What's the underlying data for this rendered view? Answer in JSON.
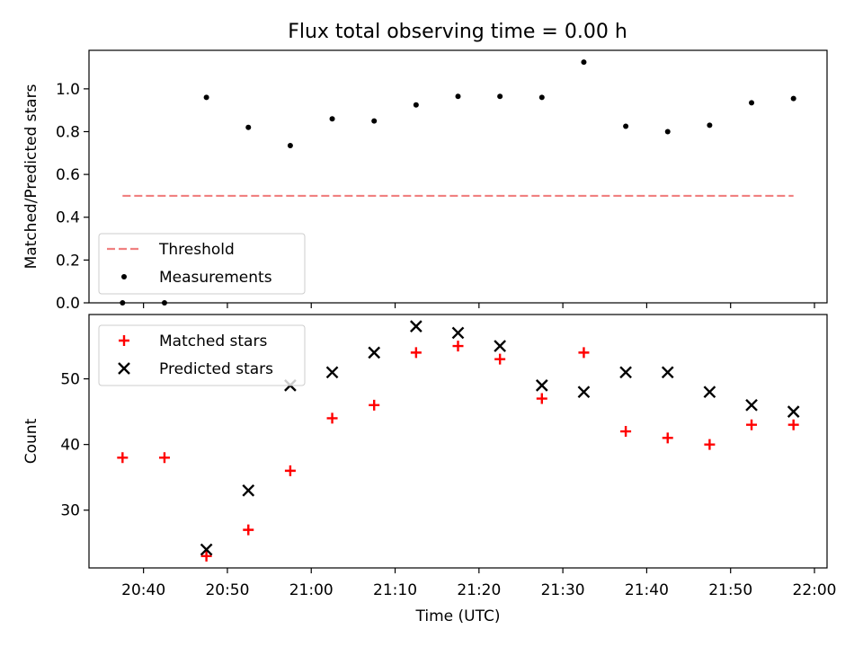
{
  "title": "Flux total observing time = 0.00 h",
  "chart_data": [
    {
      "type": "scatter",
      "ylabel": "Matched/Predicted stars",
      "xlim": [
        "20:33:30",
        "22:01:30"
      ],
      "ylim": [
        0,
        1.18
      ],
      "yticks": [
        "0.0",
        "0.2",
        "0.4",
        "0.6",
        "0.8",
        "1.0"
      ],
      "legend_position": "bottom-left",
      "series": [
        {
          "name": "Threshold",
          "style": "dashed-line",
          "color": "#f08080",
          "x": [
            "20:37:30",
            "21:57:30"
          ],
          "values": [
            0.5,
            0.5
          ]
        },
        {
          "name": "Measurements",
          "style": "dot",
          "color": "#000000",
          "x": [
            "20:37:30",
            "20:42:30",
            "20:47:30",
            "20:52:30",
            "20:57:30",
            "21:02:30",
            "21:07:30",
            "21:12:30",
            "21:17:30",
            "21:22:30",
            "21:27:30",
            "21:32:30",
            "21:37:30",
            "21:42:30",
            "21:47:30",
            "21:52:30",
            "21:57:30"
          ],
          "values": [
            0.0,
            0.0,
            0.96,
            0.82,
            0.735,
            0.86,
            0.85,
            0.925,
            0.965,
            0.965,
            0.96,
            1.125,
            0.825,
            0.8,
            0.83,
            0.935,
            0.955
          ]
        }
      ]
    },
    {
      "type": "scatter",
      "xlabel": "Time (UTC)",
      "ylabel": "Count",
      "xlim": [
        "20:33:30",
        "22:01:30"
      ],
      "ylim": [
        21.2,
        59.8
      ],
      "xticks": [
        "20:40",
        "20:50",
        "21:00",
        "21:10",
        "21:20",
        "21:30",
        "21:40",
        "21:50",
        "22:00"
      ],
      "yticks": [
        "30",
        "40",
        "50"
      ],
      "legend_position": "top-left",
      "series": [
        {
          "name": "Matched stars",
          "marker": "plus",
          "color": "#ff0000",
          "x": [
            "20:37:30",
            "20:42:30",
            "20:47:30",
            "20:52:30",
            "20:57:30",
            "21:02:30",
            "21:07:30",
            "21:12:30",
            "21:17:30",
            "21:22:30",
            "21:27:30",
            "21:32:30",
            "21:37:30",
            "21:42:30",
            "21:47:30",
            "21:52:30",
            "21:57:30"
          ],
          "values": [
            38,
            38,
            23,
            27,
            36,
            44,
            46,
            54,
            55,
            53,
            47,
            54,
            42,
            41,
            40,
            43,
            43
          ]
        },
        {
          "name": "Predicted stars",
          "marker": "x",
          "color": "#000000",
          "x": [
            "20:47:30",
            "20:52:30",
            "20:57:30",
            "21:02:30",
            "21:07:30",
            "21:12:30",
            "21:17:30",
            "21:22:30",
            "21:27:30",
            "21:32:30",
            "21:37:30",
            "21:42:30",
            "21:47:30",
            "21:52:30",
            "21:57:30"
          ],
          "values": [
            24,
            33,
            49,
            51,
            54,
            58,
            57,
            55,
            49,
            48,
            51,
            51,
            48,
            46,
            45
          ]
        }
      ]
    }
  ]
}
